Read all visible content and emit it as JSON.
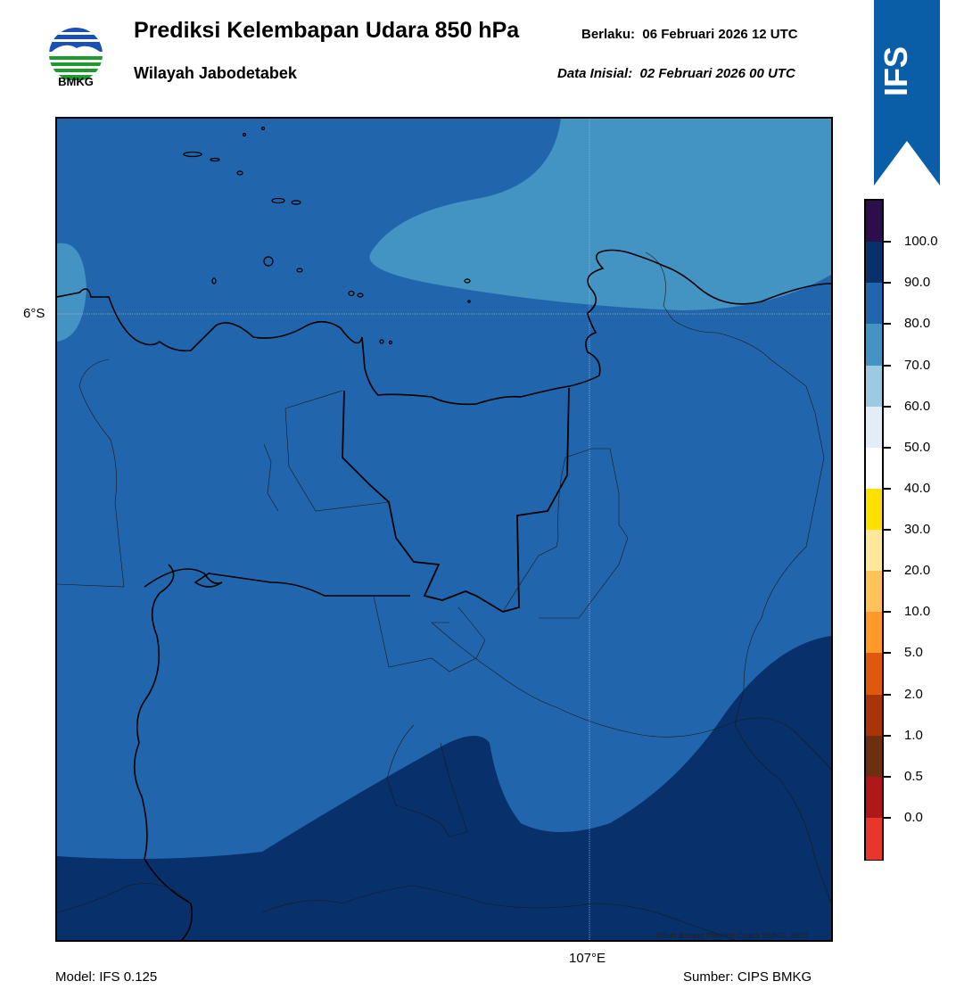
{
  "header": {
    "logo_text": "BMKG",
    "title": "Prediksi Kelembapan Udara 850 hPa",
    "subtitle": "Wilayah Jabodetabek",
    "valid_label": "Berlaku:",
    "valid_value": "06 Februari 2026 12 UTC",
    "init_label": "Data Inisial:",
    "init_value": "02 Februari 2026 00 UTC"
  },
  "badge": {
    "text": "IFS",
    "color": "#0a5ea8"
  },
  "map": {
    "lat_label": "6°S",
    "lon_label": "107°E",
    "copyright": "©Sub Bidang Prediksi Cuaca BMKG, 2020"
  },
  "footer": {
    "model": "Model: IFS 0.125",
    "source": "Sumber: CIPS BMKG"
  },
  "colorbar": {
    "labels": [
      "100.0",
      "90.0",
      "80.0",
      "70.0",
      "60.0",
      "50.0",
      "40.0",
      "30.0",
      "20.0",
      "10.0",
      "5.0",
      "2.0",
      "1.0",
      "0.5",
      "0.0"
    ],
    "colors": [
      "#2c0f4a",
      "#08306b",
      "#2166ac",
      "#4393c3",
      "#9ecae1",
      "#e3edf8",
      "#ffffff",
      "#ffe100",
      "#ffe79c",
      "#ffc25a",
      "#ff9a2a",
      "#e0580e",
      "#a83407",
      "#6e2f10",
      "#b0171a",
      "#e8362c"
    ]
  }
}
